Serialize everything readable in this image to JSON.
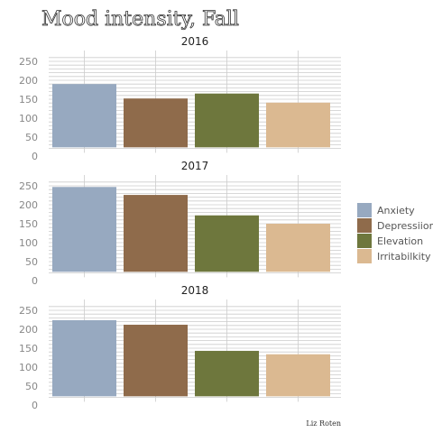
{
  "chart_data": {
    "type": "bar",
    "title": "Mood intensity, Fall",
    "caption": "Liz Roten",
    "categories": [
      "Anxiety",
      "Depressiion",
      "Elevation",
      "Irritabilkity"
    ],
    "colors": [
      "#97a9c0",
      "#8f6b4b",
      "#6e773d",
      "#dbb991"
    ],
    "ylim": [
      0,
      265
    ],
    "yticks": [
      0,
      50,
      100,
      150,
      200,
      250
    ],
    "grid": true,
    "legend_position": "right",
    "facets": [
      {
        "title": "2016",
        "values": [
          190,
          152,
          165,
          141
        ]
      },
      {
        "title": "2017",
        "values": [
          247,
          226,
          172,
          150
        ]
      },
      {
        "title": "2018",
        "values": [
          224,
          212,
          143,
          134
        ]
      }
    ]
  }
}
